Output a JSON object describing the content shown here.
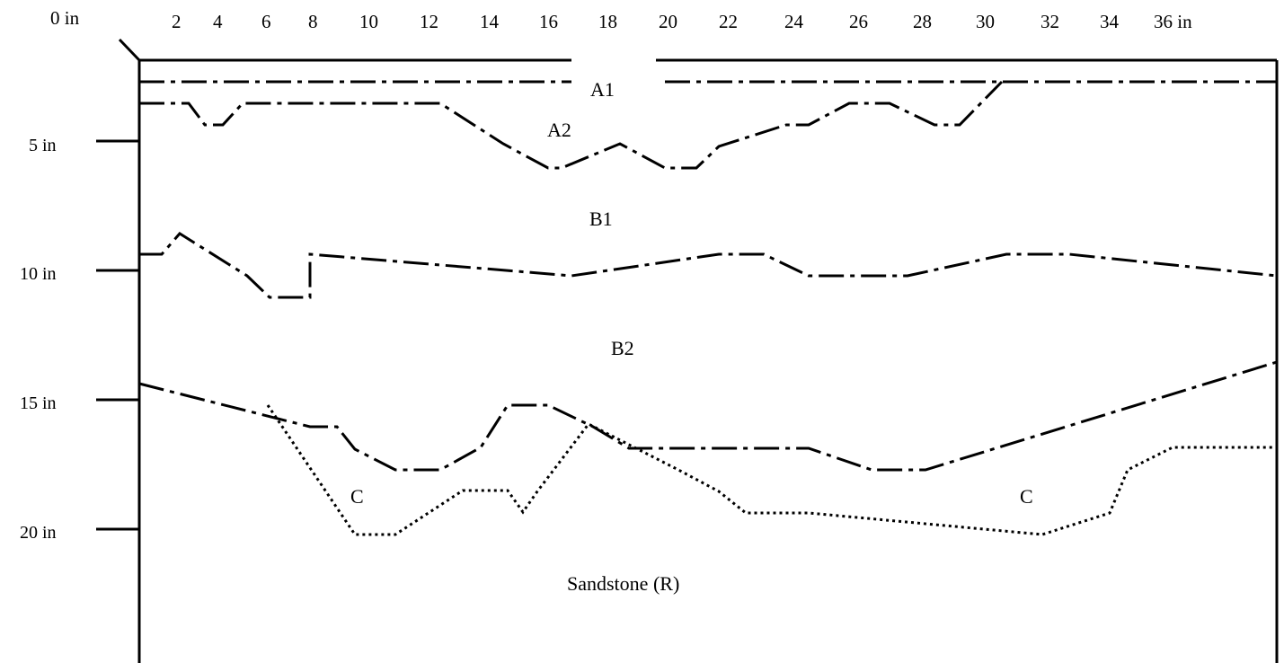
{
  "top_axis": {
    "labels": [
      "0 in",
      "2",
      "4",
      "6",
      "8",
      "10",
      "12",
      "14",
      "16",
      "18",
      "20",
      "22",
      "24",
      "26",
      "28",
      "30",
      "32",
      "34",
      "36 in"
    ]
  },
  "left_axis": {
    "labels": [
      "5 in",
      "10 in",
      "15 in",
      "20 in"
    ]
  },
  "horizons": {
    "a1": "A1",
    "a2": "A2",
    "b1": "B1",
    "b2": "B2",
    "c_left": "C",
    "c_right": "C",
    "bedrock": "Sandstone (R)"
  }
}
